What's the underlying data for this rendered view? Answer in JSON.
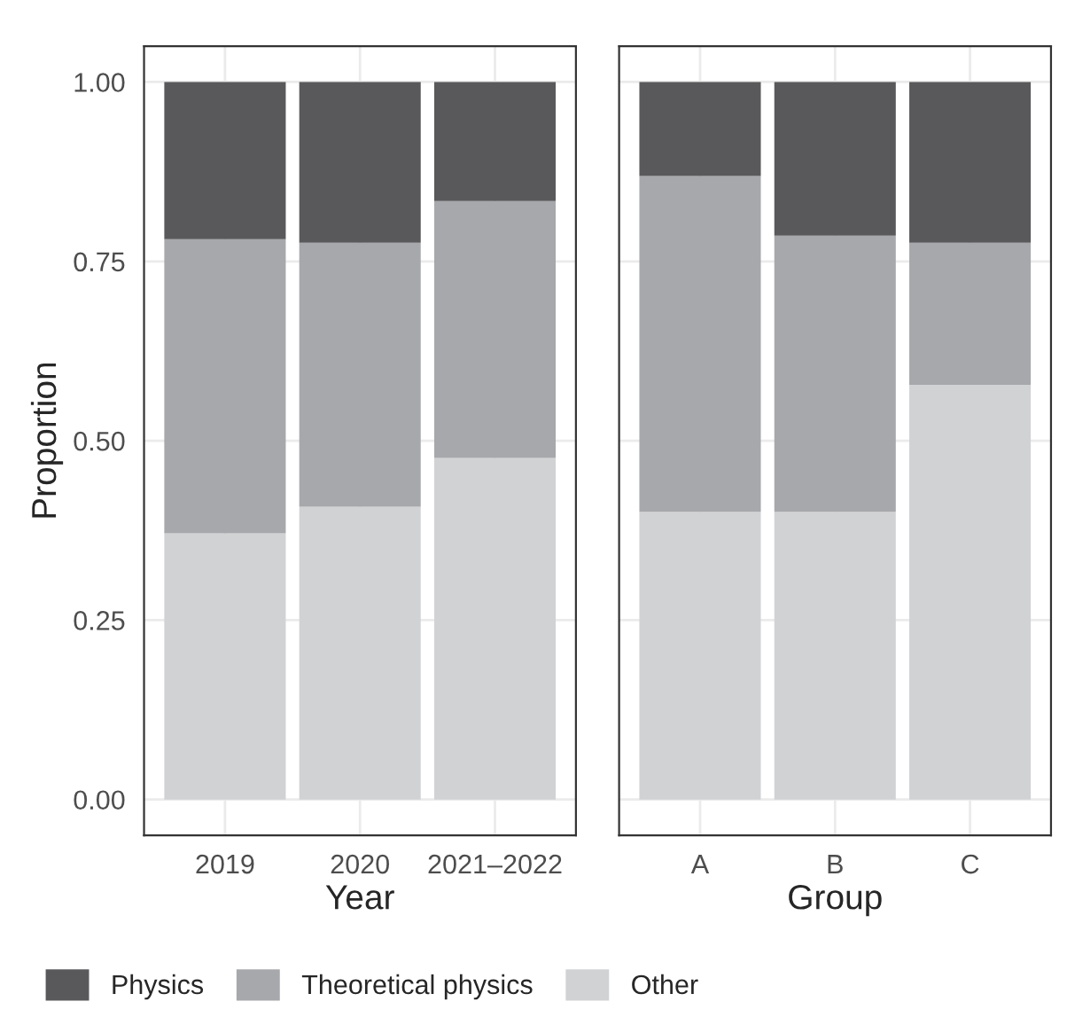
{
  "chart_data": [
    {
      "type": "bar",
      "stacked": true,
      "xlabel": "Year",
      "ylabel": "Proportion",
      "categories": [
        "2019",
        "2020",
        "2021–2022"
      ],
      "series": [
        {
          "name": "Other",
          "color": "#d1d2d4",
          "values": [
            0.371,
            0.408,
            0.476
          ]
        },
        {
          "name": "Theoretical physics",
          "color": "#a7a8ab",
          "values": [
            0.41,
            0.368,
            0.358
          ]
        },
        {
          "name": "Physics",
          "color": "#59595b",
          "values": [
            0.219,
            0.224,
            0.166
          ]
        }
      ],
      "ylim": [
        -0.05,
        1.05
      ],
      "yticks": [
        {
          "value": 0,
          "label": "0.00"
        },
        {
          "value": 0.25,
          "label": "0.25"
        },
        {
          "value": 0.5,
          "label": "0.50"
        },
        {
          "value": 0.75,
          "label": "0.75"
        },
        {
          "value": 1,
          "label": "1.00"
        }
      ],
      "grid": true,
      "legend": "bottom"
    },
    {
      "type": "bar",
      "stacked": true,
      "xlabel": "Group",
      "categories": [
        "A",
        "B",
        "C"
      ],
      "series": [
        {
          "color": "#d1d2d4",
          "values": [
            0.401,
            0.401,
            0.578
          ]
        },
        {
          "color": "#a7a8ab",
          "values": [
            0.468,
            0.385,
            0.198
          ]
        },
        {
          "color": "#59595b",
          "values": [
            0.131,
            0.214,
            0.224
          ]
        }
      ],
      "ylim": [
        -0.05,
        1.05
      ],
      "yticks": [
        0,
        0.25,
        0.5,
        0.75,
        1
      ],
      "grid": true,
      "tick_labels": "x"
    }
  ]
}
